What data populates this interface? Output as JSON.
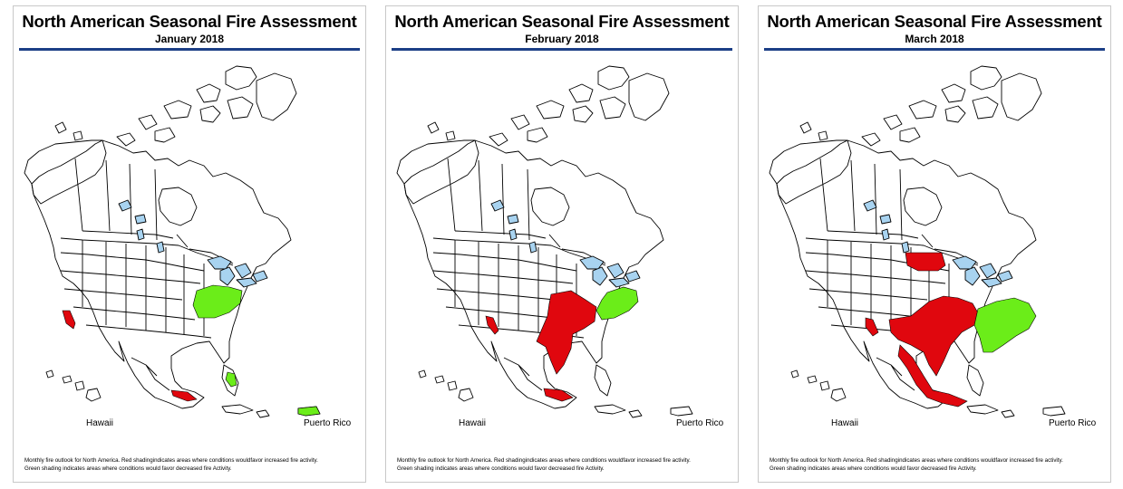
{
  "panels": [
    {
      "title": "North American Seasonal Fire Assessment",
      "month": "January 2018",
      "label_hawaii": "Hawaii",
      "label_pr": "Puerto Rico",
      "caption1": "Monthly fire outlook for North America. Red shadingindicates areas where conditions wouldfavor increased fire activity.",
      "caption2": "Green shading indicates areas where conditions would favor decreased fire Activity.",
      "above_normal": [
        "California coast",
        "Southern Mexico (Michoacán–Guerrero)"
      ],
      "below_normal": [
        "Ohio Valley / Kentucky / Tennessee",
        "Central Florida",
        "Puerto Rico"
      ]
    },
    {
      "title": "North American Seasonal Fire Assessment",
      "month": "February 2018",
      "label_hawaii": "Hawaii",
      "label_pr": "Puerto Rico",
      "caption1": "Monthly fire outlook for North America. Red shadingindicates areas where conditions wouldfavor increased fire activity.",
      "caption2": "Green shading indicates areas where conditions would favor decreased fire Activity.",
      "above_normal": [
        "Southern California",
        "Southern Plains / Texas",
        "Southern Mexico"
      ],
      "below_normal": [
        "Ohio Valley / Kentucky / Tennessee"
      ]
    },
    {
      "title": "North American Seasonal Fire Assessment",
      "month": "March 2018",
      "label_hawaii": "Hawaii",
      "label_pr": "Puerto Rico",
      "caption1": "Monthly fire outlook for North America. Red shadingindicates areas where conditions wouldfavor increased fire activity.",
      "caption2": "Green shading indicates areas where conditions would favor decreased fire Activity.",
      "above_normal": [
        "Southern Canadian Prairies",
        "Southern California",
        "Southwest / Southern Plains",
        "Western & Southern Mexico"
      ],
      "below_normal": [
        "Southeast United States / Mid-Atlantic"
      ]
    }
  ],
  "colors": {
    "increased": "#e0070e",
    "decreased": "#6bed19",
    "water": "#a8d3f0",
    "rule": "#1c3f86"
  }
}
